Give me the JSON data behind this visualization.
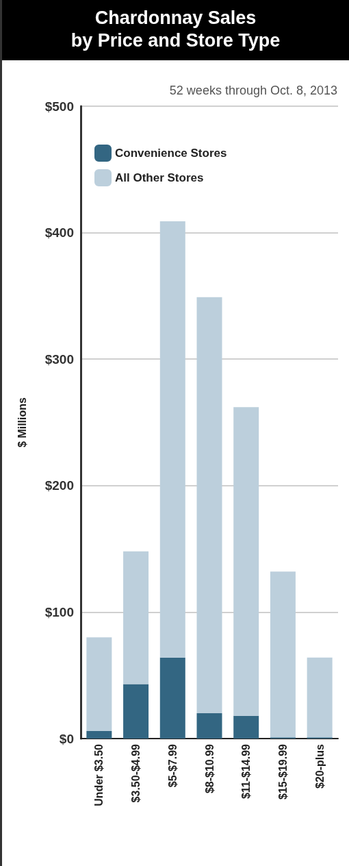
{
  "chart_data": {
    "type": "bar",
    "title": "Chardonnay Sales\nby Price and Store Type",
    "subtitle": "52 weeks through Oct. 8, 2013",
    "ylabel": "$ Millions",
    "categories": [
      "Under $3.50",
      "$3.50-$4.99",
      "$5-$7.99",
      "$8-$10.99",
      "$11-$14.99",
      "$15-$19.99",
      "$20-plus"
    ],
    "series": [
      {
        "name": "Convenience Stores",
        "color": "#336682",
        "values": [
          6,
          43,
          64,
          20,
          18,
          1,
          1
        ]
      },
      {
        "name": "All Other Stores",
        "color": "#bccfdc",
        "values": [
          74,
          105,
          345,
          329,
          244,
          131,
          63
        ]
      }
    ],
    "stacked": true,
    "ylim": [
      0,
      500
    ],
    "yticks": [
      {
        "value": 0,
        "label": "$0"
      },
      {
        "value": 100,
        "label": "$100"
      },
      {
        "value": 200,
        "label": "$200"
      },
      {
        "value": 300,
        "label": "$300"
      },
      {
        "value": 400,
        "label": "$400"
      },
      {
        "value": 500,
        "label": "$500"
      }
    ],
    "grid": "y",
    "legend": "top left"
  }
}
